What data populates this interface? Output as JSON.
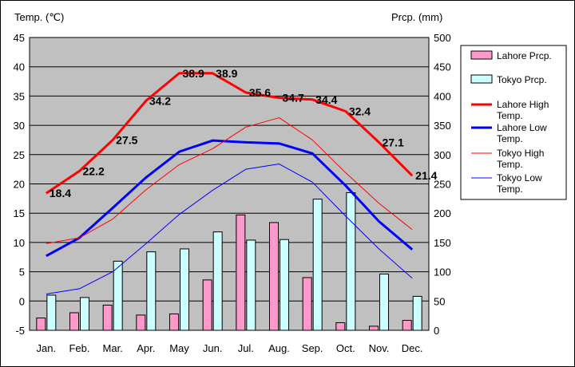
{
  "chart_data": {
    "type": "bar+line",
    "categories": [
      "Jan.",
      "Feb.",
      "Mar.",
      "Apr.",
      "May",
      "Jun.",
      "Jul.",
      "Aug.",
      "Sep.",
      "Oct.",
      "Nov.",
      "Dec."
    ],
    "left_axis": {
      "label": "Temp. (℃)",
      "range": [
        -5,
        45
      ],
      "ticks": [
        -5,
        0,
        5,
        10,
        15,
        20,
        25,
        30,
        35,
        40,
        45
      ]
    },
    "right_axis": {
      "label": "Prcp. (mm)",
      "range": [
        0,
        500
      ],
      "ticks": [
        0,
        50,
        100,
        150,
        200,
        250,
        300,
        350,
        400,
        450,
        500
      ]
    },
    "grid": "horizontal",
    "legend_position": "right",
    "bars": [
      {
        "name": "Lahore Prcp.",
        "color": "#ff99cc",
        "values": [
          21,
          30,
          43,
          26,
          28,
          86,
          197,
          184,
          90,
          13,
          7,
          17
        ]
      },
      {
        "name": "Tokyo Prcp.",
        "color": "#ccffff",
        "values": [
          60,
          56,
          118,
          134,
          139,
          168,
          154,
          155,
          224,
          235,
          96,
          58
        ]
      }
    ],
    "lines": [
      {
        "name": "Lahore High Temp.",
        "color": "#ff0000",
        "width": "thick",
        "values": [
          18.4,
          22.2,
          27.5,
          34.2,
          38.9,
          38.9,
          35.6,
          34.7,
          34.4,
          32.4,
          27.1,
          21.4
        ],
        "labels": [
          "18.4",
          "22.2",
          "27.5",
          "34.2",
          "38.9",
          "38.9",
          "35.6",
          "34.7",
          "34.4",
          "32.4",
          "27.1",
          "21.4"
        ]
      },
      {
        "name": "Lahore Low Temp.",
        "color": "#0000ff",
        "width": "thick",
        "values": [
          7.7,
          10.8,
          15.9,
          21.1,
          25.5,
          27.4,
          27.1,
          26.9,
          25.2,
          19.7,
          13.6,
          8.8
        ]
      },
      {
        "name": "Tokyo High Temp.",
        "color": "#ff0000",
        "width": "thin",
        "values": [
          9.8,
          10.8,
          14.0,
          19.0,
          23.3,
          26.0,
          29.7,
          31.3,
          27.5,
          21.9,
          16.7,
          12.2
        ]
      },
      {
        "name": "Tokyo Low Temp.",
        "color": "#0000ff",
        "width": "thin",
        "values": [
          1.2,
          2.1,
          5.0,
          9.8,
          14.8,
          18.9,
          22.5,
          23.4,
          20.3,
          14.5,
          8.9,
          3.9
        ]
      }
    ]
  }
}
